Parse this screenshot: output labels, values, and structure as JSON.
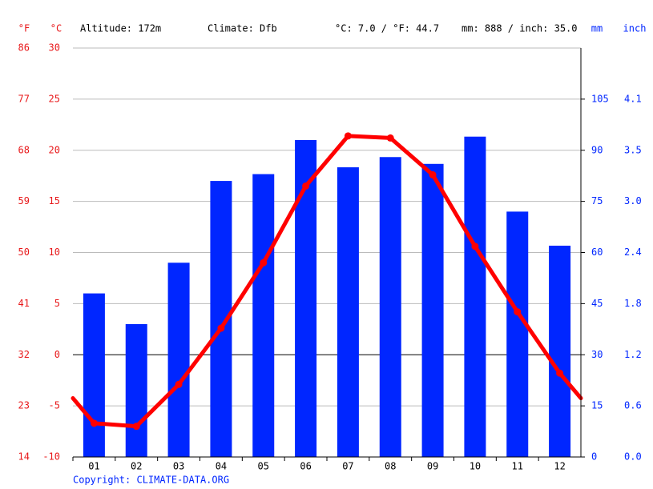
{
  "chart_data": {
    "type": "climate",
    "altitude": "Altitude: 172m",
    "climate": "Climate: Dfb",
    "temp_avg": "°C: 7.0 / °F: 44.7",
    "precip_total": "mm: 888 / inch: 35.0",
    "copyright": "Copyright: CLIMATE-DATA.ORG",
    "categories": [
      "01",
      "02",
      "03",
      "04",
      "05",
      "06",
      "07",
      "08",
      "09",
      "10",
      "11",
      "12"
    ],
    "temperature": {
      "color": "#ff0000",
      "axis": "celsius",
      "values": [
        -6.7,
        -7.0,
        -2.9,
        2.6,
        9.0,
        16.5,
        21.4,
        21.2,
        17.6,
        10.6,
        4.2,
        -1.8
      ]
    },
    "precipitation": {
      "color": "#0026ff",
      "axis": "mm",
      "values": [
        48,
        39,
        57,
        81,
        83,
        93,
        85,
        88,
        86,
        94,
        72,
        62
      ]
    },
    "axes": {
      "fahrenheit": {
        "unit": "°F",
        "lim": [
          14,
          86
        ],
        "ticks": [
          14,
          23,
          32,
          41,
          50,
          59,
          68,
          77,
          86
        ]
      },
      "celsius": {
        "unit": "°C",
        "lim": [
          -10,
          30
        ],
        "ticks": [
          -10,
          -5,
          0,
          5,
          10,
          15,
          20,
          25,
          30
        ]
      },
      "mm": {
        "unit": "mm",
        "lim": [
          0,
          120
        ],
        "ticks": [
          0,
          15,
          30,
          45,
          60,
          75,
          90,
          105
        ]
      },
      "inch": {
        "unit": "inch",
        "lim": [
          0,
          4.72
        ],
        "ticks": [
          {
            "value": 0,
            "label": "0.0"
          },
          {
            "value": 0.59,
            "label": "0.6"
          },
          {
            "value": 1.18,
            "label": "1.2"
          },
          {
            "value": 1.77,
            "label": "1.8"
          },
          {
            "value": 2.36,
            "label": "2.4"
          },
          {
            "value": 2.95,
            "label": "3.0"
          },
          {
            "value": 3.54,
            "label": "3.5"
          },
          {
            "value": 4.13,
            "label": "4.1"
          }
        ]
      }
    },
    "grid": true
  }
}
